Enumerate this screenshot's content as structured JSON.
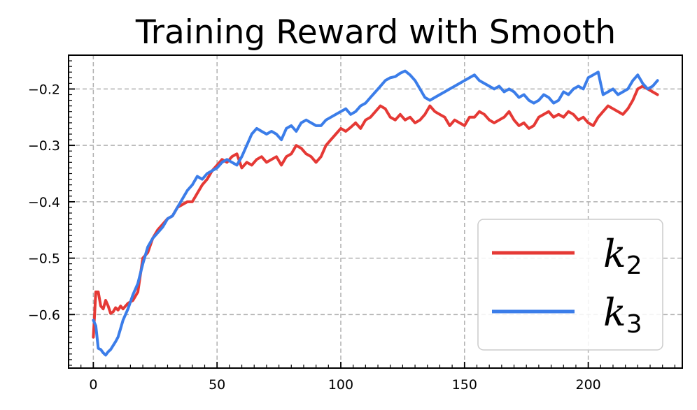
{
  "chart_data": {
    "type": "line",
    "title": "Training Reward with Smooth",
    "xlabel": "",
    "ylabel": "",
    "xlim": [
      -10,
      238
    ],
    "ylim": [
      -0.695,
      -0.14
    ],
    "x_ticks": [
      0,
      50,
      100,
      150,
      200
    ],
    "x_tick_labels": [
      "0",
      "50",
      "100",
      "150",
      "200"
    ],
    "y_ticks": [
      -0.6,
      -0.5,
      -0.4,
      -0.3,
      -0.2
    ],
    "y_tick_labels": [
      "−0.6",
      "−0.5",
      "−0.4",
      "−0.3",
      "−0.2"
    ],
    "grid": true,
    "legend_position": "lower-right",
    "series": [
      {
        "name": "k2",
        "label_base": "k",
        "label_sub": "2",
        "color": "#e53935",
        "points": [
          [
            0,
            -0.64
          ],
          [
            1,
            -0.56
          ],
          [
            2,
            -0.56
          ],
          [
            3,
            -0.585
          ],
          [
            4,
            -0.59
          ],
          [
            5,
            -0.575
          ],
          [
            6,
            -0.585
          ],
          [
            7,
            -0.598
          ],
          [
            8,
            -0.595
          ],
          [
            9,
            -0.588
          ],
          [
            10,
            -0.592
          ],
          [
            11,
            -0.585
          ],
          [
            12,
            -0.59
          ],
          [
            14,
            -0.58
          ],
          [
            16,
            -0.575
          ],
          [
            18,
            -0.56
          ],
          [
            20,
            -0.5
          ],
          [
            22,
            -0.49
          ],
          [
            24,
            -0.465
          ],
          [
            26,
            -0.45
          ],
          [
            28,
            -0.44
          ],
          [
            30,
            -0.43
          ],
          [
            32,
            -0.425
          ],
          [
            34,
            -0.41
          ],
          [
            36,
            -0.405
          ],
          [
            38,
            -0.4
          ],
          [
            40,
            -0.4
          ],
          [
            42,
            -0.385
          ],
          [
            44,
            -0.37
          ],
          [
            46,
            -0.36
          ],
          [
            48,
            -0.345
          ],
          [
            50,
            -0.335
          ],
          [
            52,
            -0.325
          ],
          [
            54,
            -0.33
          ],
          [
            56,
            -0.32
          ],
          [
            58,
            -0.315
          ],
          [
            60,
            -0.34
          ],
          [
            62,
            -0.33
          ],
          [
            64,
            -0.335
          ],
          [
            66,
            -0.325
          ],
          [
            68,
            -0.32
          ],
          [
            70,
            -0.33
          ],
          [
            72,
            -0.325
          ],
          [
            74,
            -0.32
          ],
          [
            76,
            -0.335
          ],
          [
            78,
            -0.32
          ],
          [
            80,
            -0.315
          ],
          [
            82,
            -0.3
          ],
          [
            84,
            -0.305
          ],
          [
            86,
            -0.315
          ],
          [
            88,
            -0.32
          ],
          [
            90,
            -0.33
          ],
          [
            92,
            -0.32
          ],
          [
            94,
            -0.3
          ],
          [
            96,
            -0.29
          ],
          [
            98,
            -0.28
          ],
          [
            100,
            -0.27
          ],
          [
            102,
            -0.275
          ],
          [
            104,
            -0.268
          ],
          [
            106,
            -0.26
          ],
          [
            108,
            -0.27
          ],
          [
            110,
            -0.255
          ],
          [
            112,
            -0.25
          ],
          [
            114,
            -0.24
          ],
          [
            116,
            -0.23
          ],
          [
            118,
            -0.235
          ],
          [
            120,
            -0.25
          ],
          [
            122,
            -0.255
          ],
          [
            124,
            -0.245
          ],
          [
            126,
            -0.255
          ],
          [
            128,
            -0.25
          ],
          [
            130,
            -0.26
          ],
          [
            132,
            -0.255
          ],
          [
            134,
            -0.245
          ],
          [
            136,
            -0.23
          ],
          [
            138,
            -0.24
          ],
          [
            140,
            -0.245
          ],
          [
            142,
            -0.25
          ],
          [
            144,
            -0.265
          ],
          [
            146,
            -0.255
          ],
          [
            148,
            -0.26
          ],
          [
            150,
            -0.265
          ],
          [
            152,
            -0.25
          ],
          [
            154,
            -0.25
          ],
          [
            156,
            -0.24
          ],
          [
            158,
            -0.245
          ],
          [
            160,
            -0.255
          ],
          [
            162,
            -0.26
          ],
          [
            164,
            -0.255
          ],
          [
            166,
            -0.25
          ],
          [
            168,
            -0.24
          ],
          [
            170,
            -0.255
          ],
          [
            172,
            -0.265
          ],
          [
            174,
            -0.26
          ],
          [
            176,
            -0.27
          ],
          [
            178,
            -0.265
          ],
          [
            180,
            -0.25
          ],
          [
            182,
            -0.245
          ],
          [
            184,
            -0.24
          ],
          [
            186,
            -0.25
          ],
          [
            188,
            -0.245
          ],
          [
            190,
            -0.25
          ],
          [
            192,
            -0.24
          ],
          [
            194,
            -0.245
          ],
          [
            196,
            -0.255
          ],
          [
            198,
            -0.25
          ],
          [
            200,
            -0.26
          ],
          [
            202,
            -0.265
          ],
          [
            204,
            -0.25
          ],
          [
            206,
            -0.24
          ],
          [
            208,
            -0.23
          ],
          [
            210,
            -0.235
          ],
          [
            212,
            -0.24
          ],
          [
            214,
            -0.245
          ],
          [
            216,
            -0.235
          ],
          [
            218,
            -0.22
          ],
          [
            220,
            -0.2
          ],
          [
            222,
            -0.195
          ],
          [
            224,
            -0.2
          ],
          [
            226,
            -0.205
          ],
          [
            228,
            -0.21
          ]
        ]
      },
      {
        "name": "k3",
        "label_base": "k",
        "label_sub": "3",
        "color": "#3b7de9",
        "points": [
          [
            0,
            -0.61
          ],
          [
            1,
            -0.62
          ],
          [
            2,
            -0.66
          ],
          [
            3,
            -0.662
          ],
          [
            4,
            -0.668
          ],
          [
            5,
            -0.672
          ],
          [
            6,
            -0.666
          ],
          [
            7,
            -0.662
          ],
          [
            8,
            -0.655
          ],
          [
            9,
            -0.648
          ],
          [
            10,
            -0.64
          ],
          [
            11,
            -0.625
          ],
          [
            12,
            -0.61
          ],
          [
            14,
            -0.59
          ],
          [
            16,
            -0.565
          ],
          [
            18,
            -0.545
          ],
          [
            20,
            -0.51
          ],
          [
            22,
            -0.48
          ],
          [
            24,
            -0.465
          ],
          [
            26,
            -0.455
          ],
          [
            28,
            -0.445
          ],
          [
            30,
            -0.43
          ],
          [
            32,
            -0.425
          ],
          [
            34,
            -0.41
          ],
          [
            36,
            -0.395
          ],
          [
            38,
            -0.38
          ],
          [
            40,
            -0.37
          ],
          [
            42,
            -0.355
          ],
          [
            44,
            -0.36
          ],
          [
            46,
            -0.35
          ],
          [
            48,
            -0.345
          ],
          [
            50,
            -0.34
          ],
          [
            52,
            -0.33
          ],
          [
            54,
            -0.325
          ],
          [
            56,
            -0.33
          ],
          [
            58,
            -0.335
          ],
          [
            60,
            -0.32
          ],
          [
            62,
            -0.3
          ],
          [
            64,
            -0.28
          ],
          [
            66,
            -0.27
          ],
          [
            68,
            -0.275
          ],
          [
            70,
            -0.28
          ],
          [
            72,
            -0.275
          ],
          [
            74,
            -0.28
          ],
          [
            76,
            -0.29
          ],
          [
            78,
            -0.27
          ],
          [
            80,
            -0.265
          ],
          [
            82,
            -0.275
          ],
          [
            84,
            -0.26
          ],
          [
            86,
            -0.255
          ],
          [
            88,
            -0.26
          ],
          [
            90,
            -0.265
          ],
          [
            92,
            -0.265
          ],
          [
            94,
            -0.255
          ],
          [
            96,
            -0.25
          ],
          [
            98,
            -0.245
          ],
          [
            100,
            -0.24
          ],
          [
            102,
            -0.235
          ],
          [
            104,
            -0.245
          ],
          [
            106,
            -0.24
          ],
          [
            108,
            -0.23
          ],
          [
            110,
            -0.225
          ],
          [
            112,
            -0.215
          ],
          [
            114,
            -0.205
          ],
          [
            116,
            -0.195
          ],
          [
            118,
            -0.185
          ],
          [
            120,
            -0.18
          ],
          [
            122,
            -0.178
          ],
          [
            124,
            -0.172
          ],
          [
            126,
            -0.168
          ],
          [
            128,
            -0.175
          ],
          [
            130,
            -0.185
          ],
          [
            132,
            -0.2
          ],
          [
            134,
            -0.215
          ],
          [
            136,
            -0.22
          ],
          [
            138,
            -0.215
          ],
          [
            140,
            -0.21
          ],
          [
            142,
            -0.205
          ],
          [
            144,
            -0.2
          ],
          [
            146,
            -0.195
          ],
          [
            148,
            -0.19
          ],
          [
            150,
            -0.185
          ],
          [
            152,
            -0.18
          ],
          [
            154,
            -0.175
          ],
          [
            156,
            -0.185
          ],
          [
            158,
            -0.19
          ],
          [
            160,
            -0.195
          ],
          [
            162,
            -0.2
          ],
          [
            164,
            -0.195
          ],
          [
            166,
            -0.205
          ],
          [
            168,
            -0.2
          ],
          [
            170,
            -0.205
          ],
          [
            172,
            -0.215
          ],
          [
            174,
            -0.21
          ],
          [
            176,
            -0.22
          ],
          [
            178,
            -0.225
          ],
          [
            180,
            -0.22
          ],
          [
            182,
            -0.21
          ],
          [
            184,
            -0.215
          ],
          [
            186,
            -0.225
          ],
          [
            188,
            -0.22
          ],
          [
            190,
            -0.205
          ],
          [
            192,
            -0.21
          ],
          [
            194,
            -0.2
          ],
          [
            196,
            -0.195
          ],
          [
            198,
            -0.2
          ],
          [
            200,
            -0.18
          ],
          [
            202,
            -0.175
          ],
          [
            204,
            -0.17
          ],
          [
            206,
            -0.21
          ],
          [
            208,
            -0.205
          ],
          [
            210,
            -0.2
          ],
          [
            212,
            -0.21
          ],
          [
            214,
            -0.205
          ],
          [
            216,
            -0.2
          ],
          [
            218,
            -0.185
          ],
          [
            220,
            -0.175
          ],
          [
            222,
            -0.19
          ],
          [
            224,
            -0.2
          ],
          [
            226,
            -0.195
          ],
          [
            228,
            -0.185
          ]
        ]
      }
    ]
  }
}
